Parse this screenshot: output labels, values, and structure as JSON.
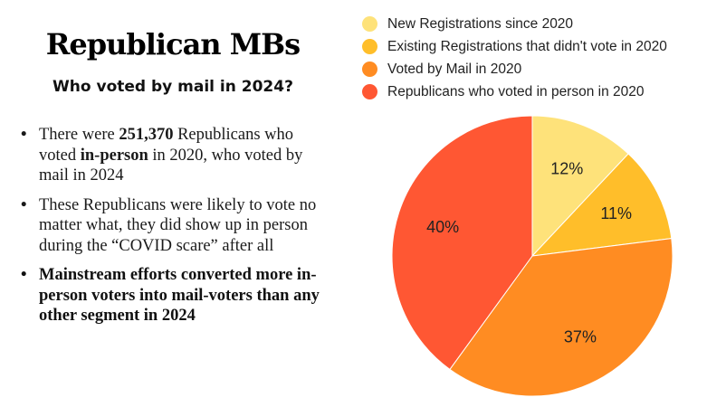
{
  "title": "Republican MBs",
  "subtitle": "Who voted by mail in 2024?",
  "bullets": [
    {
      "parts": [
        {
          "text": "There were ",
          "bold": false
        },
        {
          "text": "251,370",
          "bold": true
        },
        {
          "text": " Republicans who voted ",
          "bold": false
        },
        {
          "text": "in-person",
          "bold": true
        },
        {
          "text": " in 2020, who voted by mail in 2024",
          "bold": false
        }
      ]
    },
    {
      "parts": [
        {
          "text": "These Republicans were likely to vote no matter what, they did show up in person during the “COVID scare” after all",
          "bold": false
        }
      ]
    },
    {
      "emphasis": true,
      "parts": [
        {
          "text": "Mainstream efforts converted more in-person voters into mail-voters than any other segment in 2024",
          "bold": true
        }
      ]
    }
  ],
  "chart_data": {
    "type": "pie",
    "title": "",
    "legend_position": "top",
    "start_angle": "12 o'clock, clockwise",
    "slices": [
      {
        "label": "New Registrations since 2020",
        "value": 12,
        "display": "12%",
        "color": "#FEE27A"
      },
      {
        "label": "Existing Registrations that didn't vote in 2020",
        "value": 11,
        "display": "11%",
        "color": "#FFBE2A"
      },
      {
        "label": "Voted by Mail in 2020",
        "value": 37,
        "display": "37%",
        "color": "#FF8C22"
      },
      {
        "label": "Republicans who voted in person in 2020",
        "value": 40,
        "display": "40%",
        "color": "#FF5733"
      }
    ]
  }
}
